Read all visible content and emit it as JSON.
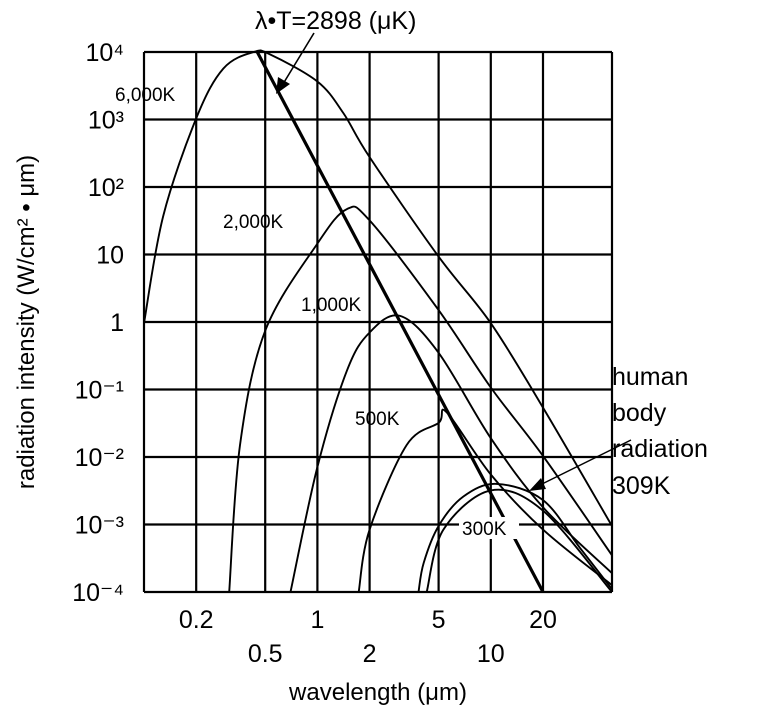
{
  "chart_data": {
    "type": "line",
    "title": "",
    "xlabel": "wavelength (μm)",
    "ylabel": "radiation intensity (W/cm² • μm)",
    "xscale": "log",
    "yscale": "log",
    "xlim": [
      0.1,
      50
    ],
    "ylim": [
      0.0001,
      10000
    ],
    "grid": true,
    "x_gridlines": [
      0.1,
      0.2,
      0.5,
      1,
      2,
      5,
      10,
      20,
      50
    ],
    "x_ticks": [
      {
        "value": 0.2,
        "label": "0.2",
        "row": "upper"
      },
      {
        "value": 0.5,
        "label": "0.5",
        "row": "lower"
      },
      {
        "value": 1,
        "label": "1",
        "row": "upper"
      },
      {
        "value": 2,
        "label": "2",
        "row": "lower"
      },
      {
        "value": 5,
        "label": "5",
        "row": "upper"
      },
      {
        "value": 10,
        "label": "10",
        "row": "lower"
      },
      {
        "value": 20,
        "label": "20",
        "row": "upper"
      }
    ],
    "y_ticks": [
      {
        "value": 10000,
        "label": "10⁴"
      },
      {
        "value": 1000,
        "label": "10³"
      },
      {
        "value": 100,
        "label": "10²"
      },
      {
        "value": 10,
        "label": "10"
      },
      {
        "value": 1,
        "label": "1"
      },
      {
        "value": 0.1,
        "label": "10⁻¹"
      },
      {
        "value": 0.01,
        "label": "10⁻²"
      },
      {
        "value": 0.001,
        "label": "10⁻³"
      },
      {
        "value": 0.0001,
        "label": "10⁻⁴"
      }
    ],
    "series": [
      {
        "name": "6,000K",
        "points": [
          [
            0.1,
            0.96
          ],
          [
            0.129,
            37
          ],
          [
            0.2,
            1040
          ],
          [
            0.287,
            5700
          ],
          [
            0.43,
            10000
          ],
          [
            0.533,
            9200
          ],
          [
            1,
            3650
          ],
          [
            1.41,
            1250
          ],
          [
            2,
            277
          ],
          [
            5,
            9.3
          ],
          [
            10,
            0.96
          ],
          [
            20,
            0.054
          ],
          [
            50,
            0.00095
          ]
        ]
      },
      {
        "name": "2,000K",
        "points": [
          [
            0.31,
            0.0001
          ],
          [
            0.358,
            0.015
          ],
          [
            0.5,
            0.74
          ],
          [
            1,
            14.5
          ],
          [
            1.48,
            47
          ],
          [
            2,
            32
          ],
          [
            5,
            1.5
          ],
          [
            10,
            0.107
          ],
          [
            20,
            0.0104
          ],
          [
            50,
            0.00035
          ]
        ]
      },
      {
        "name": "1,000K",
        "points": [
          [
            0.7,
            0.0001
          ],
          [
            1,
            0.0071
          ],
          [
            1.48,
            0.19
          ],
          [
            2,
            0.7
          ],
          [
            3,
            1.23
          ],
          [
            5,
            0.35
          ],
          [
            10,
            0.019
          ],
          [
            20,
            0.0018
          ],
          [
            50,
            0.00019
          ]
        ]
      },
      {
        "name": "500K",
        "points": [
          [
            1.73,
            0.0001
          ],
          [
            2,
            0.00084
          ],
          [
            3.27,
            0.015
          ],
          [
            5,
            0.032
          ],
          [
            5.57,
            0.046
          ],
          [
            10,
            0.0055
          ],
          [
            20,
            0.00084
          ],
          [
            50,
            0.000126
          ]
        ]
      },
      {
        "name": "309K",
        "points": [
          [
            3.83,
            0.0001
          ],
          [
            4.1,
            0.00027
          ],
          [
            5,
            0.00095
          ],
          [
            6.95,
            0.0026
          ],
          [
            10.8,
            0.004
          ],
          [
            20,
            0.0023
          ],
          [
            32.7,
            0.00045
          ],
          [
            50,
            0.00011
          ]
        ]
      },
      {
        "name": "300K",
        "points": [
          [
            4.27,
            0.0001
          ],
          [
            5.33,
            0.00084
          ],
          [
            10,
            0.0032
          ],
          [
            20,
            0.0016
          ],
          [
            50,
            0.0001
          ]
        ]
      }
    ],
    "annotations": {
      "wien_label": "λ•T=2898 (μK)",
      "wien_line": [
        [
          0.45,
          10000
        ],
        [
          20,
          0.0001
        ]
      ],
      "human_body_lines": [
        "human",
        "body",
        "radiation",
        "309K"
      ]
    }
  }
}
